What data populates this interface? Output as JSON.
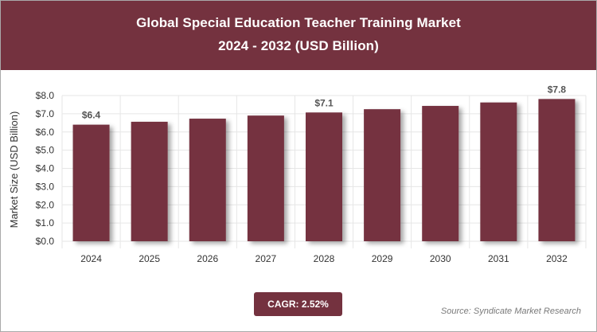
{
  "header": {
    "title_line1": "Global Special Education Teacher Training Market",
    "title_line2": "2024 - 2032 (USD Billion)"
  },
  "footer": {
    "cagr_label": "CAGR: 2.52%",
    "source": "Source: Syndicate Market Research"
  },
  "colors": {
    "header_bg": "#74323f",
    "bar": "#74323f",
    "grid": "#e6e6e6"
  },
  "chart_data": {
    "type": "bar",
    "title": "Global Special Education Teacher Training Market",
    "subtitle": "2024 - 2032 (USD Billion)",
    "xlabel": "",
    "ylabel": "Market Size (USD Billion)",
    "categories": [
      "2024",
      "2025",
      "2026",
      "2027",
      "2028",
      "2029",
      "2030",
      "2031",
      "2032"
    ],
    "values": [
      6.4,
      6.56,
      6.73,
      6.9,
      7.07,
      7.25,
      7.43,
      7.62,
      7.81
    ],
    "data_labels": [
      {
        "index": 0,
        "text": "$6.4"
      },
      {
        "index": 4,
        "text": "$7.1"
      },
      {
        "index": 8,
        "text": "$7.8"
      }
    ],
    "y_ticks": [
      0,
      1,
      2,
      3,
      4,
      5,
      6,
      7,
      8
    ],
    "y_tick_labels": [
      "$0.0",
      "$1.0",
      "$2.0",
      "$3.0",
      "$4.0",
      "$5.0",
      "$6.0",
      "$7.0",
      "$8.0"
    ],
    "ylim": [
      0,
      8
    ],
    "grid": true,
    "legend": false
  }
}
